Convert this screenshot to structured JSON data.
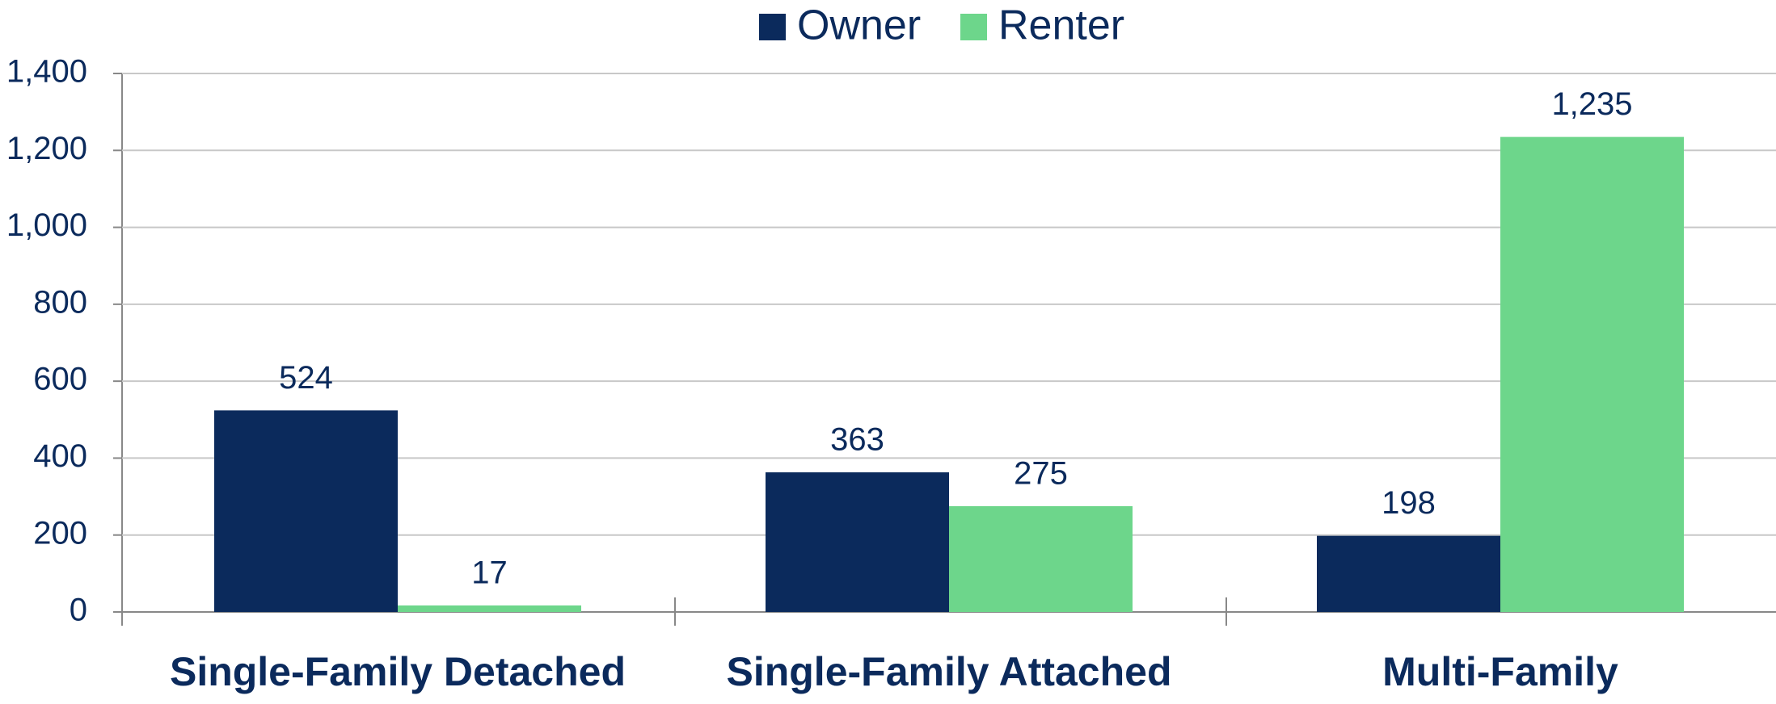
{
  "chart_data": {
    "type": "bar",
    "categories": [
      "Single-Family Detached",
      "Single-Family Attached",
      "Multi-Family"
    ],
    "series": [
      {
        "name": "Owner",
        "color": "#0b2a5c",
        "values": [
          524,
          363,
          198
        ]
      },
      {
        "name": "Renter",
        "color": "#6dd68b",
        "values": [
          17,
          275,
          1235
        ],
        "value_labels": [
          "17",
          "275",
          "1,235"
        ]
      }
    ],
    "ylim": [
      0,
      1400
    ],
    "yticks": [
      0,
      200,
      400,
      600,
      800,
      {
        "value": 1000,
        "label": "1,000"
      },
      {
        "value": 1200,
        "label": "1,200"
      },
      {
        "value": 1400,
        "label": "1,400"
      }
    ],
    "grid": true,
    "legend": "top"
  }
}
